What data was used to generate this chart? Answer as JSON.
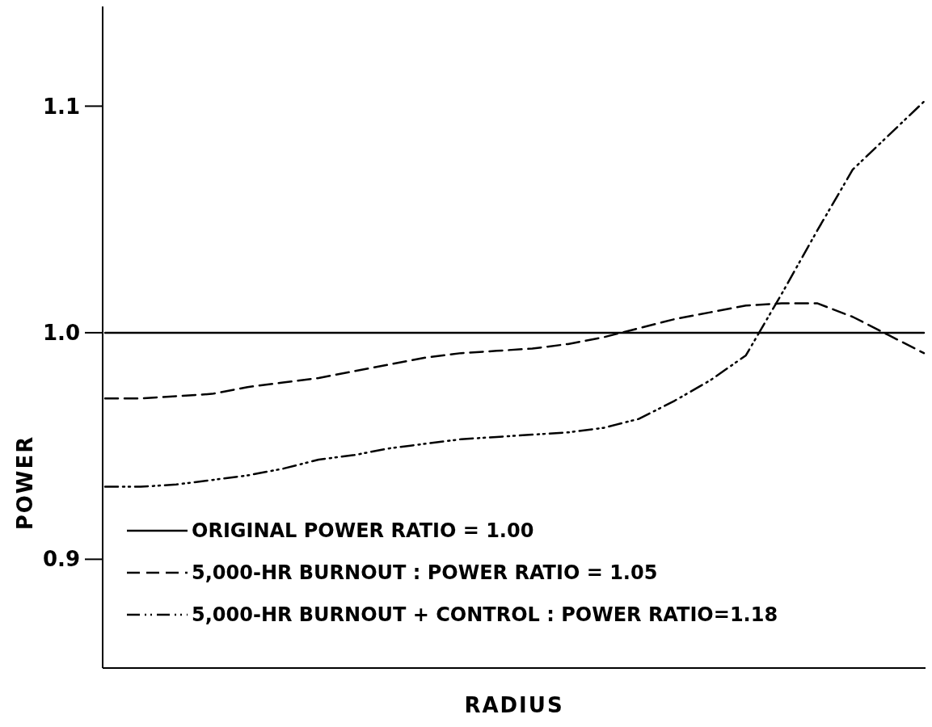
{
  "chart_data": {
    "type": "line",
    "xlabel": "RADIUS",
    "ylabel": "POWER",
    "categories": [
      null,
      null,
      null,
      null,
      null,
      null,
      null,
      null,
      null,
      null,
      null,
      null,
      null,
      null,
      null,
      null,
      null,
      null,
      null,
      null,
      null,
      null,
      null,
      null
    ],
    "series": [
      {
        "name": "ORIGINAL POWER RATIO = 1.00",
        "color": "#000000",
        "line_style": "solid",
        "values": [
          1,
          1,
          1,
          1,
          1,
          1,
          1,
          1,
          1,
          1,
          1,
          1,
          1,
          1,
          1,
          1,
          1,
          1,
          1,
          1,
          1,
          1,
          1,
          1
        ]
      },
      {
        "name": "5,000-HR BURNOUT : POWER RATIO = 1.05",
        "color": "#000000",
        "line_style": "dashed",
        "values": [
          0.971,
          0.971,
          0.972,
          0.973,
          0.976,
          0.978,
          0.98,
          0.983,
          0.986,
          0.989,
          0.991,
          0.992,
          0.993,
          0.995,
          0.998,
          1.002,
          1.006,
          1.009,
          1.012,
          1.013,
          1.013,
          1.007,
          0.999,
          0.991
        ]
      },
      {
        "name": "5,000-HR BURNOUT + CONTROL : POWER RATIO=1.18",
        "color": "#000000",
        "line_style": "dotted",
        "values": [
          0.932,
          0.932,
          0.933,
          0.935,
          0.937,
          0.94,
          0.944,
          0.946,
          0.949,
          0.951,
          0.953,
          0.954,
          0.955,
          0.956,
          0.958,
          0.962,
          0.97,
          0.979,
          0.99,
          1.017,
          1.045,
          1.072,
          1.087,
          1.102
        ]
      }
    ],
    "ylim": [
      0.852,
      1.144
    ],
    "yticks": [
      0.9,
      {
        "value": 1,
        "label": "1.0"
      },
      1.1
    ],
    "grid": false,
    "legend": "bottom left",
    "marker": "none"
  }
}
